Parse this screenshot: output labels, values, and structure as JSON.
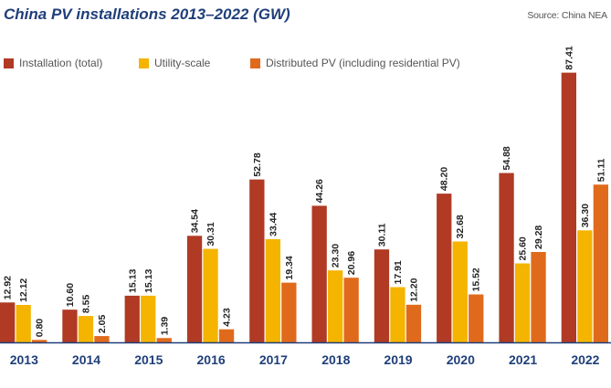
{
  "header": {
    "title": "China PV installations 2013–2022 (GW)",
    "source": "Source: China NEA"
  },
  "colors": {
    "title": "#1f3f7a",
    "axis": "#1f3f7a",
    "series": [
      "#b03a24",
      "#f4b400",
      "#e06a1c"
    ]
  },
  "chart_data": {
    "type": "bar",
    "title": "China PV installations 2013–2022 (GW)",
    "xlabel": "",
    "ylabel": "",
    "ylim": [
      0,
      90
    ],
    "grid": false,
    "legend_position": "top-left",
    "categories": [
      "2013",
      "2014",
      "2015",
      "2016",
      "2017",
      "2018",
      "2019",
      "2020",
      "2021",
      "2022"
    ],
    "series": [
      {
        "name": "Installation (total)",
        "color": "#b03a24",
        "values": [
          12.92,
          10.6,
          15.13,
          34.54,
          52.78,
          44.26,
          30.11,
          48.2,
          54.88,
          87.41
        ]
      },
      {
        "name": "Utility-scale",
        "color": "#f4b400",
        "values": [
          12.12,
          8.55,
          15.13,
          30.31,
          33.44,
          23.3,
          17.91,
          32.68,
          25.6,
          36.3
        ]
      },
      {
        "name": "Distributed PV (including residential PV)",
        "color": "#e06a1c",
        "values": [
          0.8,
          2.05,
          1.39,
          4.23,
          19.34,
          20.96,
          12.2,
          15.52,
          29.28,
          51.11
        ]
      }
    ]
  }
}
